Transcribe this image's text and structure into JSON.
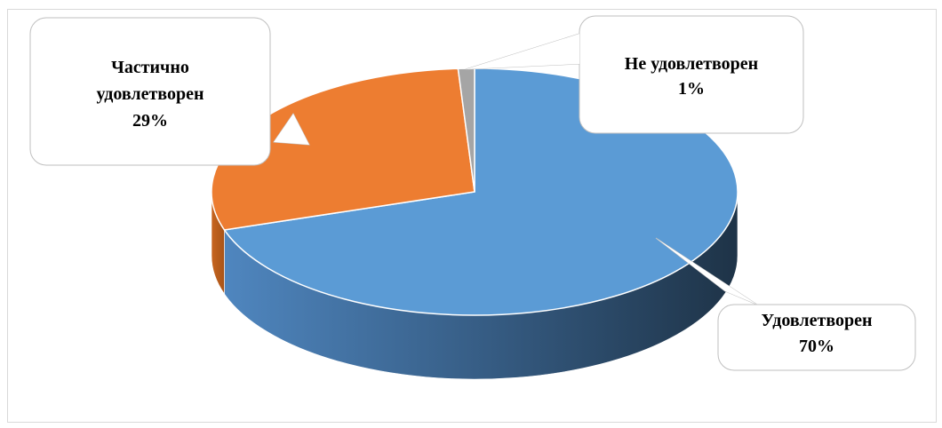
{
  "chart_data": {
    "type": "pie",
    "style": "3d",
    "title": "",
    "slices": [
      {
        "label": "Удовлетворен",
        "value": 70,
        "value_label": "70%",
        "color": "#5b9bd5"
      },
      {
        "label": "Частично удовлетворен",
        "value": 29,
        "value_label": "29%",
        "color": "#ed7d31"
      },
      {
        "label": "Не удовлетворен",
        "value": 1,
        "value_label": "1%",
        "color": "#a5a5a5"
      }
    ],
    "legend": "none",
    "data_labels": "callouts"
  }
}
